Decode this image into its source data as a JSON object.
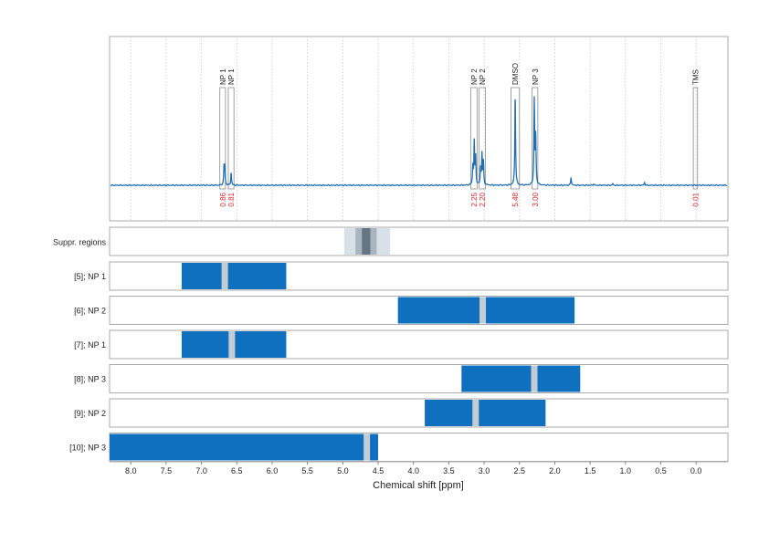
{
  "chart_data": {
    "type": "line",
    "xlabel": "Chemical shift [ppm]",
    "xlim": [
      8.3,
      -0.45
    ],
    "x_reversed": true,
    "x_ticks": [
      "8.0",
      "7.5",
      "7.0",
      "6.5",
      "6.0",
      "5.5",
      "5.0",
      "4.5",
      "4.0",
      "3.5",
      "3.0",
      "2.5",
      "2.0",
      "1.5",
      "1.0",
      "0.5",
      "0.0"
    ],
    "grid": "vertical-dotted",
    "colors": {
      "spectrum": "#1f6fb2",
      "band": "#0f70bf",
      "shade": "#d6dee6",
      "shade_dark": "#6b7b88",
      "integral_text": "#d62728",
      "frame": "#aaaaaa"
    },
    "spectrum": {
      "baseline": 0,
      "peaks": [
        {
          "x": 6.68,
          "y": 0.2
        },
        {
          "x": 6.67,
          "y": 0.16
        },
        {
          "x": 6.58,
          "y": 0.14
        },
        {
          "x": 3.14,
          "y": 0.47
        },
        {
          "x": 3.12,
          "y": 0.3
        },
        {
          "x": 3.16,
          "y": 0.2
        },
        {
          "x": 3.03,
          "y": 0.34
        },
        {
          "x": 3.01,
          "y": 0.25
        },
        {
          "x": 3.05,
          "y": 0.18
        },
        {
          "x": 2.56,
          "y": 1.0
        },
        {
          "x": 2.29,
          "y": 0.93
        },
        {
          "x": 2.27,
          "y": 0.52
        },
        {
          "x": 1.77,
          "y": 0.09
        },
        {
          "x": 0.73,
          "y": 0.03
        },
        {
          "x": 1.18,
          "y": 0.02
        },
        {
          "x": 1.45,
          "y": 0.015
        }
      ]
    },
    "peak_annotations": [
      {
        "label": "NP 1",
        "x0": 6.74,
        "x1": 6.66,
        "integral": "0.86"
      },
      {
        "label": "NP 1",
        "x0": 6.62,
        "x1": 6.54,
        "integral": "0.81"
      },
      {
        "label": "NP 2",
        "x0": 3.19,
        "x1": 3.1,
        "integral": "2.25"
      },
      {
        "label": "NP 2",
        "x0": 3.07,
        "x1": 2.98,
        "integral": "2.20"
      },
      {
        "label": "DMSO",
        "x0": 2.62,
        "x1": 2.5,
        "integral": "5.48"
      },
      {
        "label": "NP 3",
        "x0": 2.32,
        "x1": 2.24,
        "integral": "3.00"
      },
      {
        "label": "TMS",
        "x0": 0.04,
        "x1": -0.02,
        "integral": "0.01"
      }
    ],
    "suppression": {
      "label": "Suppr. regions",
      "regions": [
        {
          "x0": 4.98,
          "x1": 4.33,
          "level": "light"
        },
        {
          "x0": 4.82,
          "x1": 4.52,
          "level": "medium"
        },
        {
          "x0": 4.73,
          "x1": 4.61,
          "level": "dark"
        }
      ]
    },
    "bands": [
      {
        "label": "[5]; NP 1",
        "range": [
          7.28,
          5.8
        ],
        "shifts": [
          6.67
        ]
      },
      {
        "label": "[6]; NP 2",
        "range": [
          4.22,
          1.72
        ],
        "shifts": [
          3.02
        ]
      },
      {
        "label": "[7]; NP 1",
        "range": [
          7.28,
          5.8
        ],
        "shifts": [
          6.57
        ]
      },
      {
        "label": "[8]; NP 3",
        "range": [
          3.32,
          1.64
        ],
        "shifts": [
          2.29
        ]
      },
      {
        "label": "[9]; NP 2",
        "range": [
          3.84,
          2.13
        ],
        "shifts": [
          3.12
        ]
      },
      {
        "label": "[10]; NP 3",
        "range": [
          8.3,
          4.5
        ],
        "shifts": [
          4.66
        ]
      }
    ]
  }
}
